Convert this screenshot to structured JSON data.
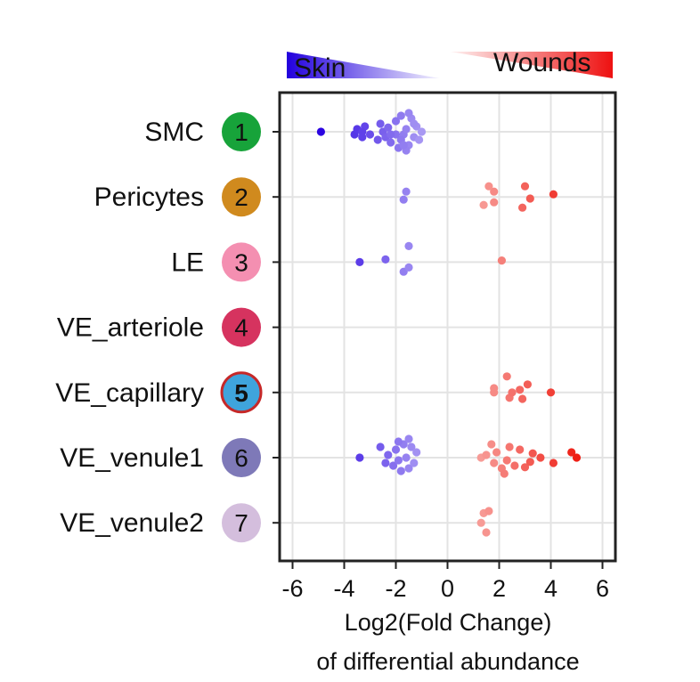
{
  "chart_data": {
    "type": "scatter",
    "xlabel_line1": "Log2(Fold Change)",
    "xlabel_line2": "of differential abundance",
    "xlim": [
      -6.5,
      6.5
    ],
    "xticks": [
      -6,
      -4,
      -2,
      0,
      2,
      4,
      6
    ],
    "grid": true,
    "legend": {
      "left_label": "Skin",
      "right_label": "Wounds",
      "left_color": "#2200dd",
      "right_color": "#ee1111"
    },
    "categories": [
      {
        "label": "SMC",
        "cluster": "1",
        "badge_color": "#17a33a",
        "highlight": false
      },
      {
        "label": "Pericytes",
        "cluster": "2",
        "badge_color": "#d08a1e",
        "highlight": false
      },
      {
        "label": "LE",
        "cluster": "3",
        "badge_color": "#f48fb1",
        "highlight": false
      },
      {
        "label": "VE_arteriole",
        "cluster": "4",
        "badge_color": "#d6335f",
        "highlight": false
      },
      {
        "label": "VE_capillary",
        "cluster": "5",
        "badge_color": "#3fa4dc",
        "highlight": true
      },
      {
        "label": "VE_venule1",
        "cluster": "6",
        "badge_color": "#7e79b8",
        "highlight": false
      },
      {
        "label": "VE_venule2",
        "cluster": "7",
        "badge_color": "#d4bedd",
        "highlight": false
      }
    ],
    "points": [
      [
        0,
        -4.9,
        0.0
      ],
      [
        0,
        -3.6,
        0.05
      ],
      [
        0,
        -3.5,
        -0.05
      ],
      [
        0,
        -3.3,
        0.1
      ],
      [
        0,
        -3.2,
        -0.1
      ],
      [
        0,
        -3.3,
        0.0
      ],
      [
        0,
        -3.0,
        0.05
      ],
      [
        0,
        -2.7,
        0.15
      ],
      [
        0,
        -2.6,
        -0.15
      ],
      [
        0,
        -2.5,
        0.0
      ],
      [
        0,
        -2.4,
        0.1
      ],
      [
        0,
        -2.3,
        -0.08
      ],
      [
        0,
        -2.2,
        0.2
      ],
      [
        0,
        -2.0,
        -0.2
      ],
      [
        0,
        -1.9,
        0.3
      ],
      [
        0,
        -1.8,
        -0.3
      ],
      [
        0,
        -1.7,
        0.05
      ],
      [
        0,
        -1.6,
        -0.05
      ],
      [
        0,
        -1.5,
        0.25
      ],
      [
        0,
        -1.4,
        -0.25
      ],
      [
        0,
        -1.3,
        0.1
      ],
      [
        0,
        -1.2,
        -0.1
      ],
      [
        0,
        -1.1,
        0.15
      ],
      [
        0,
        -1.0,
        0.0
      ],
      [
        0,
        -1.8,
        0.15
      ],
      [
        0,
        -1.6,
        0.35
      ],
      [
        0,
        -1.5,
        -0.35
      ],
      [
        0,
        -2.0,
        0.05
      ],
      [
        0,
        -1.3,
        -0.15
      ],
      [
        0,
        -1.7,
        0.25
      ],
      [
        0,
        -2.2,
        0.05
      ],
      [
        1,
        -1.7,
        0.05
      ],
      [
        1,
        -1.6,
        -0.1
      ],
      [
        1,
        1.4,
        0.15
      ],
      [
        1,
        1.8,
        0.1
      ],
      [
        1,
        2.9,
        0.2
      ],
      [
        1,
        3.2,
        0.03
      ],
      [
        1,
        4.1,
        -0.05
      ],
      [
        1,
        1.8,
        -0.1
      ],
      [
        1,
        1.6,
        -0.2
      ],
      [
        1,
        3.0,
        -0.2
      ],
      [
        2,
        -3.4,
        0.0
      ],
      [
        2,
        -2.4,
        -0.05
      ],
      [
        2,
        -1.7,
        0.18
      ],
      [
        2,
        -1.5,
        0.1
      ],
      [
        2,
        -1.5,
        -0.3
      ],
      [
        2,
        2.1,
        -0.03
      ],
      [
        4,
        2.4,
        0.1
      ],
      [
        4,
        2.9,
        0.12
      ],
      [
        4,
        2.5,
        0.0
      ],
      [
        4,
        1.8,
        0.0
      ],
      [
        4,
        1.8,
        -0.08
      ],
      [
        4,
        2.8,
        -0.05
      ],
      [
        4,
        3.1,
        -0.15
      ],
      [
        4,
        4.0,
        0.0
      ],
      [
        4,
        2.3,
        -0.3
      ],
      [
        5,
        -3.4,
        0.0
      ],
      [
        5,
        -2.4,
        0.1
      ],
      [
        5,
        -2.3,
        -0.05
      ],
      [
        5,
        -2.1,
        0.15
      ],
      [
        5,
        -2.0,
        -0.15
      ],
      [
        5,
        -1.9,
        0.05
      ],
      [
        5,
        -1.8,
        0.25
      ],
      [
        5,
        -1.7,
        -0.25
      ],
      [
        5,
        -1.6,
        0.0
      ],
      [
        5,
        -1.5,
        0.2
      ],
      [
        5,
        -1.4,
        -0.2
      ],
      [
        5,
        -1.3,
        0.1
      ],
      [
        5,
        -1.2,
        -0.1
      ],
      [
        5,
        -2.6,
        -0.2
      ],
      [
        5,
        -1.9,
        -0.3
      ],
      [
        5,
        -1.5,
        -0.35
      ],
      [
        5,
        1.3,
        0.0
      ],
      [
        5,
        1.5,
        -0.05
      ],
      [
        5,
        1.8,
        0.1
      ],
      [
        5,
        1.9,
        -0.1
      ],
      [
        5,
        2.1,
        0.2
      ],
      [
        5,
        2.3,
        0.05
      ],
      [
        5,
        2.4,
        -0.2
      ],
      [
        5,
        2.6,
        0.15
      ],
      [
        5,
        2.8,
        -0.15
      ],
      [
        5,
        3.0,
        0.18
      ],
      [
        5,
        3.2,
        0.08
      ],
      [
        5,
        3.3,
        -0.08
      ],
      [
        5,
        3.6,
        0.0
      ],
      [
        5,
        4.1,
        0.1
      ],
      [
        5,
        4.8,
        -0.1
      ],
      [
        5,
        5.0,
        0.0
      ],
      [
        5,
        2.2,
        0.3
      ],
      [
        5,
        1.7,
        -0.25
      ],
      [
        6,
        1.5,
        0.18
      ],
      [
        6,
        1.3,
        0.0
      ],
      [
        6,
        1.4,
        -0.18
      ],
      [
        6,
        1.6,
        -0.22
      ]
    ]
  }
}
